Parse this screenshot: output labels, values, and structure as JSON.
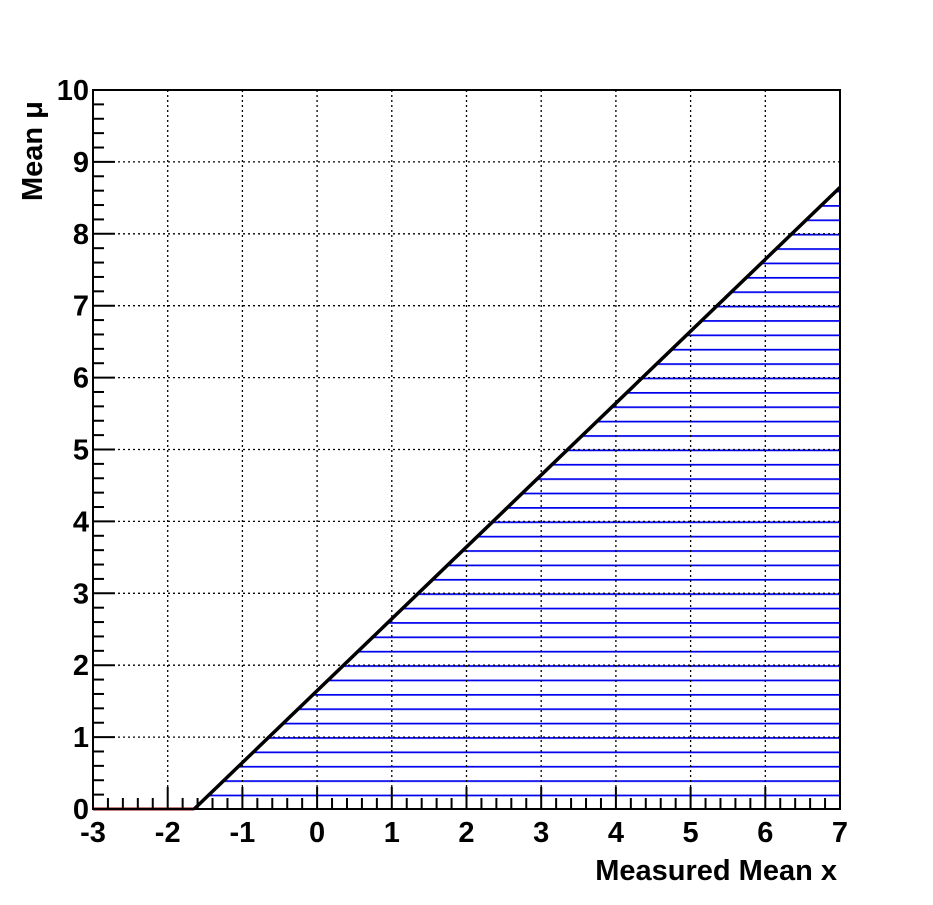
{
  "chart_data": {
    "type": "line",
    "xlabel": "Measured Mean x",
    "ylabel": "Mean μ",
    "xlim": [
      -3,
      7
    ],
    "xticks": [
      -3,
      -2,
      -1,
      0,
      1,
      2,
      3,
      4,
      5,
      6,
      7
    ],
    "ylim": [
      0,
      10
    ],
    "yticks": [
      0,
      1,
      2,
      3,
      4,
      5,
      6,
      7,
      8,
      9,
      10
    ],
    "grid": true,
    "series": [
      {
        "color": "#8b0000",
        "x": [
          -3,
          -1.645
        ],
        "values": [
          0,
          0
        ]
      },
      {
        "color": "#000000",
        "x": [
          -1.645,
          7
        ],
        "values": [
          0,
          8.645
        ],
        "hatch": "#0000ee"
      }
    ]
  }
}
